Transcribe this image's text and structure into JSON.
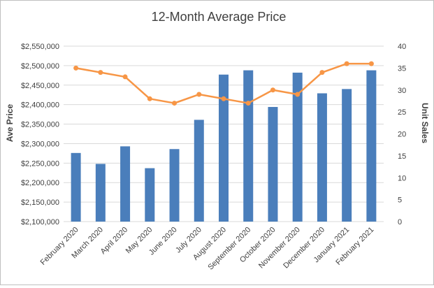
{
  "chart_data": {
    "type": "bar+line",
    "title": "12-Month Average Price",
    "ylabel_left": "Ave Price",
    "ylabel_right": "Unit Sales",
    "categories": [
      "February 2020",
      "March 2020",
      "April 2020",
      "May 2020",
      "June 2020",
      "July 2020",
      "August 2020",
      "September 2020",
      "October 2020",
      "November 2020",
      "December 2020",
      "January 2021",
      "February 2021"
    ],
    "series": [
      {
        "type": "bar",
        "axis": "left",
        "color": "#4a7ebb",
        "values": [
          2276000,
          2248000,
          2293000,
          2237000,
          2286000,
          2361000,
          2477000,
          2488000,
          2394000,
          2482000,
          2429000,
          2440000,
          2488000
        ]
      },
      {
        "type": "line",
        "axis": "right",
        "color": "#f79646",
        "values": [
          35,
          34,
          33,
          28,
          27,
          29,
          28,
          27,
          30,
          29,
          34,
          36,
          36
        ]
      }
    ],
    "ylim_left": [
      2100000,
      2550000
    ],
    "ylim_right": [
      0,
      40
    ],
    "yticks_left": [
      "$2,100,000",
      "$2,150,000",
      "$2,200,000",
      "$2,250,000",
      "$2,300,000",
      "$2,350,000",
      "$2,400,000",
      "$2,450,000",
      "$2,500,000",
      "$2,550,000"
    ],
    "yticks_right": [
      "0",
      "5",
      "10",
      "15",
      "20",
      "25",
      "30",
      "35",
      "40"
    ],
    "grid": true,
    "legend": "none"
  }
}
